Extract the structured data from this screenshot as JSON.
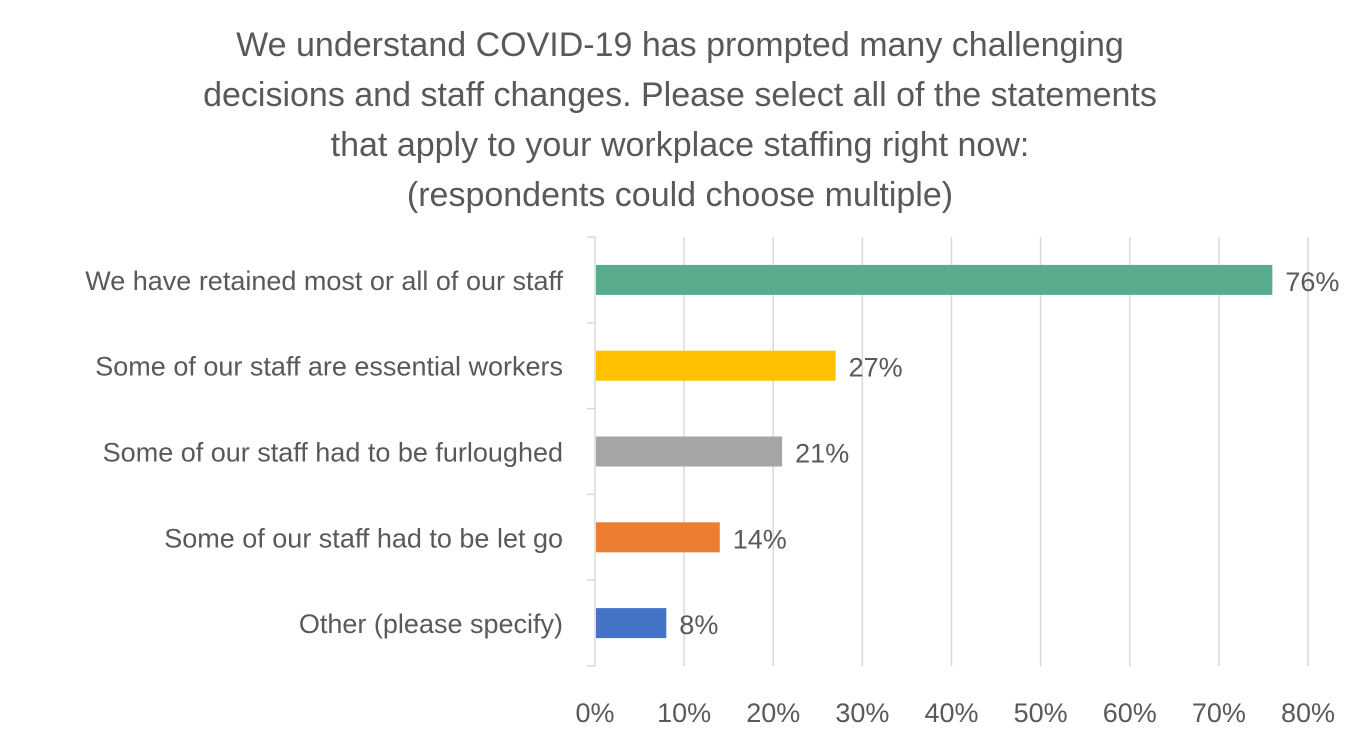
{
  "chart_data": {
    "type": "bar",
    "orientation": "horizontal",
    "title_lines": [
      "We understand COVID-19 has prompted many challenging",
      "decisions and staff changes. Please select all of the statements",
      "that apply to your workplace staffing right now:",
      "(respondents could choose multiple)"
    ],
    "categories": [
      "We have retained most or all of our staff",
      "Some of our staff are essential workers",
      "Some of our staff had to be furloughed",
      "Some of our staff had to be let go",
      "Other (please specify)"
    ],
    "values": [
      76,
      27,
      21,
      14,
      8
    ],
    "data_labels": [
      "76%",
      "27%",
      "21%",
      "14%",
      "8%"
    ],
    "colors": [
      "#58AC8C",
      "#FFC000",
      "#A5A5A5",
      "#ED7D31",
      "#4472C4"
    ],
    "xlim": [
      0,
      80
    ],
    "xticks": [
      0,
      10,
      20,
      30,
      40,
      50,
      60,
      70,
      80
    ],
    "xtick_labels": [
      "0%",
      "10%",
      "20%",
      "30%",
      "40%",
      "50%",
      "60%",
      "70%",
      "80%"
    ],
    "grid": true,
    "legend": "none",
    "xlabel": "",
    "ylabel": ""
  }
}
